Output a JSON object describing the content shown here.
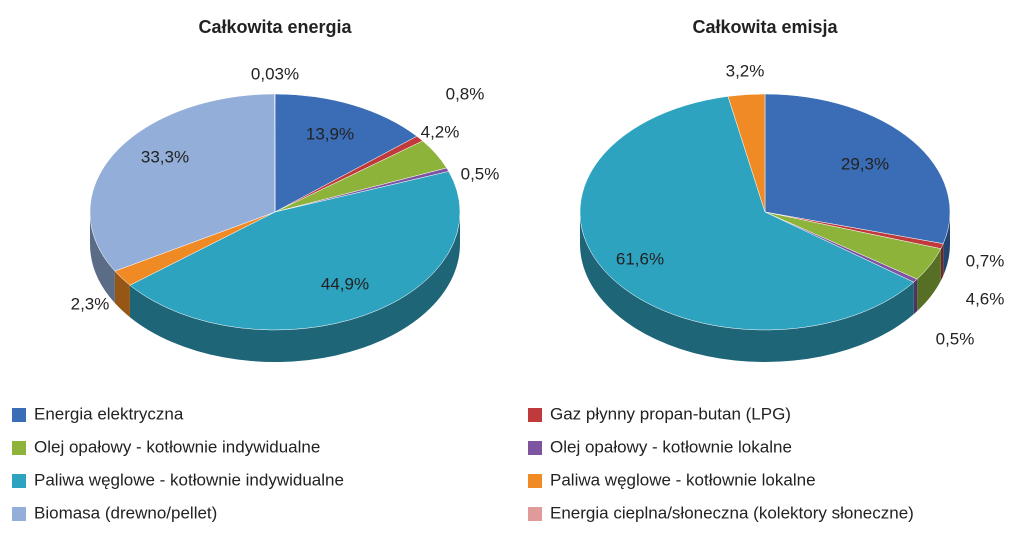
{
  "chart_data": [
    {
      "type": "pie",
      "title": "Całkowita energia",
      "categories": [
        "Energia elektryczna",
        "Gaz płynny propan-butan (LPG)",
        "Olej opałowy - kotłownie indywidualne",
        "Olej opałowy - kotłownie lokalne",
        "Paliwa węglowe - kotłownie indywidualne",
        "Paliwa węglowe - kotłownie lokalne",
        "Biomasa (drewno/pellet)",
        "Energia cieplna/słoneczna (kolektory słoneczne)"
      ],
      "colors": [
        "#3a6db5",
        "#c0393b",
        "#8db33a",
        "#7c54a0",
        "#2ea3c0",
        "#f08a24",
        "#93aed8",
        "#e19a9a"
      ],
      "values": [
        13.9,
        0.8,
        4.2,
        0.5,
        44.9,
        2.3,
        33.3,
        0.03
      ],
      "value_labels": [
        "13,9%",
        "0,8%",
        "4,2%",
        "0,5%",
        "44,9%",
        "2,3%",
        "33,3%",
        "0,03%"
      ]
    },
    {
      "type": "pie",
      "title": "Całkowita emisja",
      "values": [
        29.3,
        0.7,
        4.6,
        0.5,
        61.6,
        3.2,
        null,
        null
      ],
      "value_labels": [
        "29,3%",
        "0,7%",
        "4,6%",
        "0,5%",
        "61,6%",
        "3,2%",
        null,
        null
      ]
    }
  ]
}
